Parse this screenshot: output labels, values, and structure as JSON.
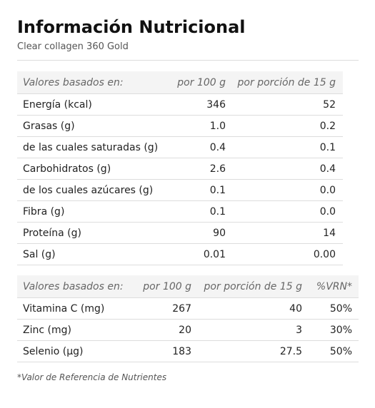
{
  "header": {
    "title": "Información Nutricional",
    "subtitle": "Clear collagen 360 Gold"
  },
  "tables": [
    {
      "columns": [
        "Valores basados en:",
        "por 100 g",
        "por porción de 15 g"
      ],
      "rows": [
        [
          "Energía (kcal)",
          "346",
          "52"
        ],
        [
          "Grasas (g)",
          "1.0",
          "0.2"
        ],
        [
          "de las cuales saturadas (g)",
          "0.4",
          "0.1"
        ],
        [
          "Carbohidratos (g)",
          "2.6",
          "0.4"
        ],
        [
          "de los cuales azúcares (g)",
          "0.1",
          "0.0"
        ],
        [
          "Fibra (g)",
          "0.1",
          "0.0"
        ],
        [
          "Proteína (g)",
          "90",
          "14"
        ],
        [
          "Sal (g)",
          "0.01",
          "0.00"
        ]
      ]
    },
    {
      "columns": [
        "Valores basados en:",
        "por 100 g",
        "por porción de 15 g",
        "%VRN*"
      ],
      "rows": [
        [
          "Vitamina C (mg)",
          "267",
          "40",
          "50%"
        ],
        [
          "Zinc (mg)",
          "20",
          "3",
          "30%"
        ],
        [
          "Selenio (µg)",
          "183",
          "27.5",
          "50%"
        ]
      ]
    }
  ],
  "footnote": "*Valor de Referencia de Nutrientes"
}
